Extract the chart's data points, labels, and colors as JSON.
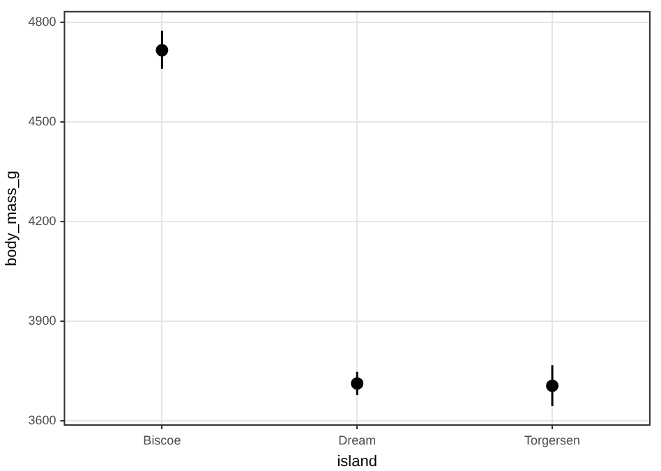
{
  "chart_data": {
    "type": "scatter",
    "xlabel": "island",
    "ylabel": "body_mass_g",
    "categories": [
      "Biscoe",
      "Dream",
      "Torgersen"
    ],
    "values": [
      4716,
      3713,
      3706
    ],
    "errors": [
      [
        4660,
        4775
      ],
      [
        3678,
        3748
      ],
      [
        3645,
        3768
      ]
    ],
    "color": "#000000",
    "marker": "circle",
    "ylim": [
      3588,
      4832
    ],
    "yticks": [
      3600,
      3900,
      4200,
      4500,
      4800
    ],
    "grid": true,
    "legend": false
  }
}
